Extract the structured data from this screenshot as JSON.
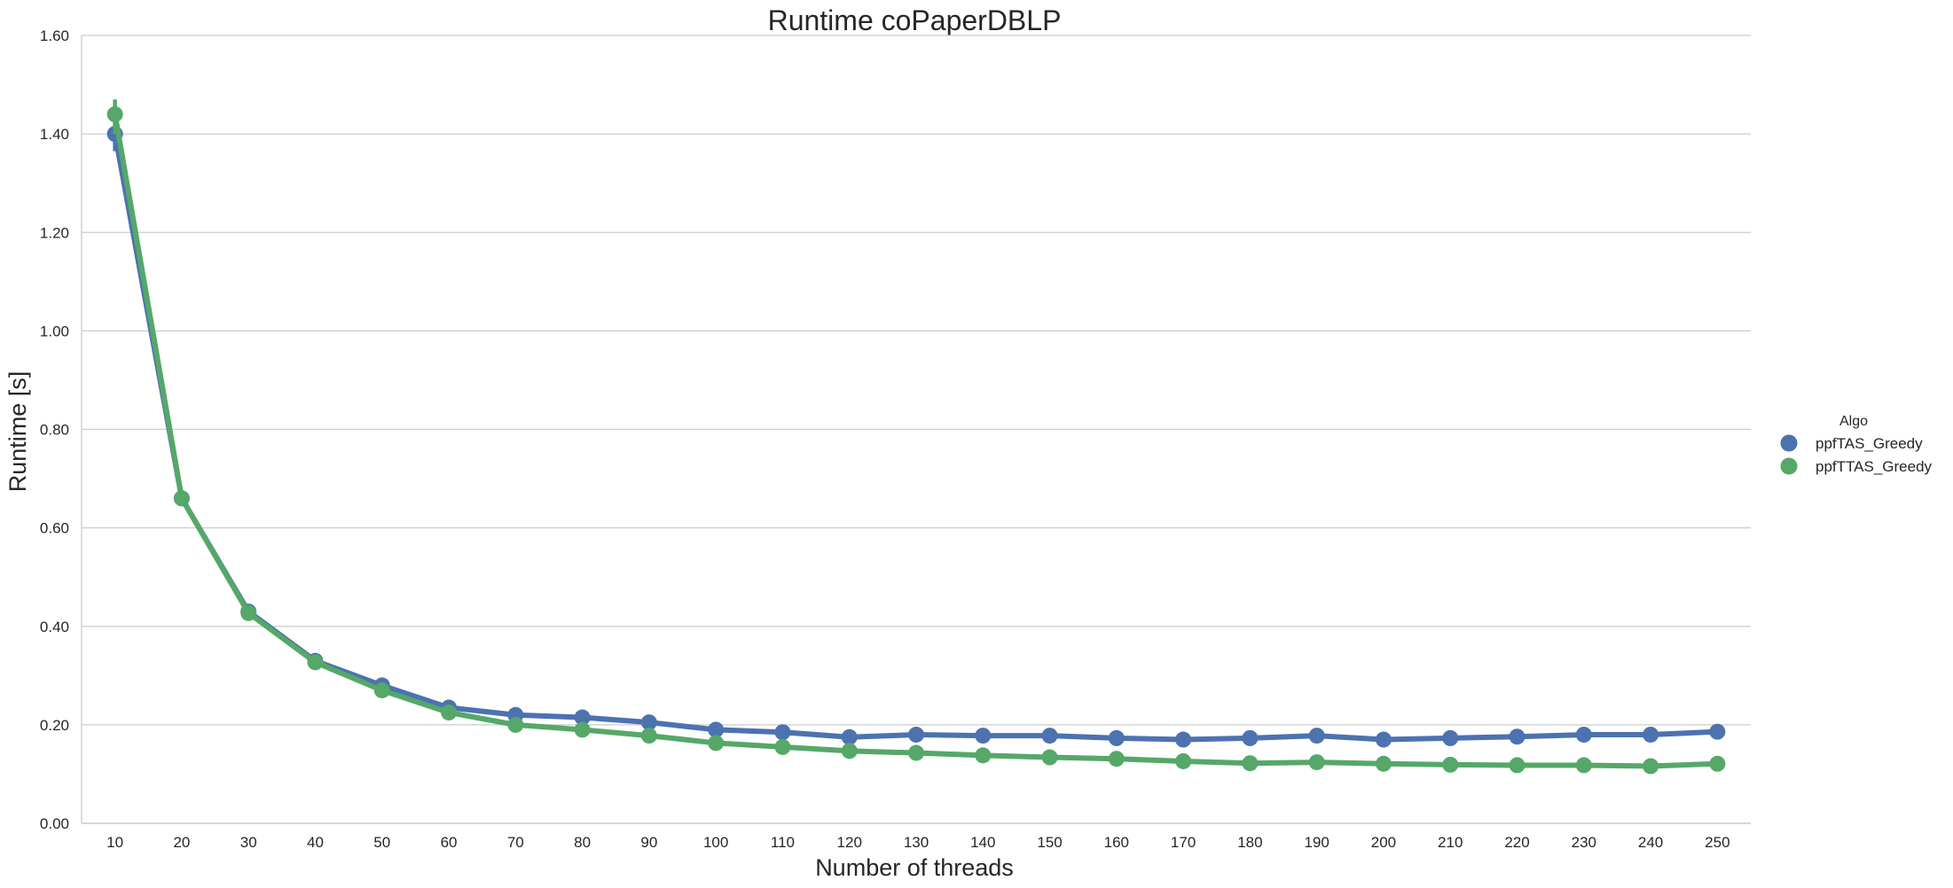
{
  "chart_data": {
    "type": "line",
    "title": "Runtime coPaperDBLP",
    "xlabel": "Number of threads",
    "ylabel": "Runtime [s]",
    "categories": [
      "10",
      "20",
      "30",
      "40",
      "50",
      "60",
      "70",
      "80",
      "90",
      "100",
      "110",
      "120",
      "130",
      "140",
      "150",
      "160",
      "170",
      "180",
      "190",
      "200",
      "210",
      "220",
      "230",
      "240",
      "250"
    ],
    "ylim": [
      0,
      1.6
    ],
    "yticks": [
      "0.00",
      "0.20",
      "0.40",
      "0.60",
      "0.80",
      "1.00",
      "1.20",
      "1.40",
      "1.60"
    ],
    "grid": "horizontal",
    "legend": {
      "title": "Algo",
      "placement": "right"
    },
    "series": [
      {
        "name": "ppfTAS_Greedy",
        "color": "#4c72b0",
        "values": [
          1.4,
          0.66,
          0.43,
          0.33,
          0.28,
          0.235,
          0.22,
          0.215,
          0.205,
          0.19,
          0.185,
          0.175,
          0.18,
          0.178,
          0.178,
          0.173,
          0.17,
          0.173,
          0.178,
          0.17,
          0.173,
          0.176,
          0.18,
          0.18,
          0.186
        ],
        "error": [
          [
            1.365,
            1.435
          ]
        ]
      },
      {
        "name": "ppfTTAS_Greedy",
        "color": "#55a868",
        "values": [
          1.44,
          0.66,
          0.427,
          0.327,
          0.27,
          0.225,
          0.2,
          0.19,
          0.178,
          0.163,
          0.155,
          0.147,
          0.143,
          0.138,
          0.134,
          0.131,
          0.126,
          0.122,
          0.124,
          0.121,
          0.119,
          0.118,
          0.118,
          0.116,
          0.121
        ],
        "error": [
          [
            1.4,
            1.47
          ]
        ]
      }
    ]
  }
}
